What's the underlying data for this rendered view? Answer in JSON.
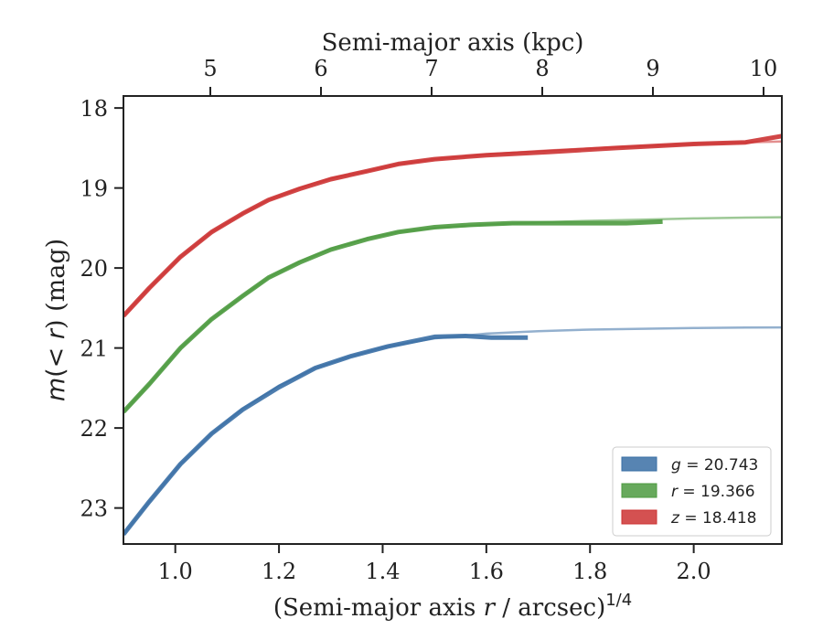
{
  "chart_data": {
    "type": "line",
    "xlabel_main": "(Semi-major axis ",
    "xlabel_var": "r",
    "xlabel_unit": " / arcsec)",
    "xlabel_exp": "1/4",
    "x2label": "Semi-major axis (kpc)",
    "ylabel_pre": "m",
    "ylabel_paren_open": "(",
    "ylabel_lt": "< ",
    "ylabel_var": "r",
    "ylabel_post": ") (mag)",
    "xlim": [
      0.9,
      2.17
    ],
    "ylim": [
      23.45,
      17.85
    ],
    "y_inverted": true,
    "x_ticks": [
      "1.0",
      "1.2",
      "1.4",
      "1.6",
      "1.8",
      "2.0"
    ],
    "y_ticks": [
      "18",
      "19",
      "20",
      "21",
      "22",
      "23"
    ],
    "x2_ticks": [
      "5",
      "6",
      "7",
      "8",
      "9",
      "10"
    ],
    "legend_position": "lower right",
    "series": [
      {
        "name_var": "g",
        "name_val": " = 20.743",
        "color": "#3a6fa5",
        "data": [
          [
            0.9,
            23.33
          ],
          [
            0.95,
            22.92
          ],
          [
            1.01,
            22.45
          ],
          [
            1.07,
            22.07
          ],
          [
            1.13,
            21.77
          ],
          [
            1.2,
            21.49
          ],
          [
            1.27,
            21.25
          ],
          [
            1.34,
            21.1
          ],
          [
            1.41,
            20.98
          ],
          [
            1.5,
            20.86
          ],
          [
            1.56,
            20.85
          ],
          [
            1.61,
            20.87
          ],
          [
            1.68,
            20.87
          ]
        ],
        "model": [
          [
            0.9,
            23.33
          ],
          [
            0.95,
            22.92
          ],
          [
            1.01,
            22.45
          ],
          [
            1.07,
            22.07
          ],
          [
            1.13,
            21.76
          ],
          [
            1.2,
            21.47
          ],
          [
            1.27,
            21.25
          ],
          [
            1.34,
            21.1
          ],
          [
            1.41,
            20.98
          ],
          [
            1.5,
            20.88
          ],
          [
            1.6,
            20.82
          ],
          [
            1.7,
            20.79
          ],
          [
            1.8,
            20.77
          ],
          [
            1.9,
            20.76
          ],
          [
            2.0,
            20.75
          ],
          [
            2.1,
            20.745
          ],
          [
            2.17,
            20.743
          ]
        ]
      },
      {
        "name_var": "r",
        "name_val": " = 19.366",
        "color": "#4c9a3f",
        "data": [
          [
            0.9,
            21.8
          ],
          [
            0.95,
            21.45
          ],
          [
            1.01,
            21.0
          ],
          [
            1.07,
            20.64
          ],
          [
            1.13,
            20.35
          ],
          [
            1.18,
            20.12
          ],
          [
            1.24,
            19.93
          ],
          [
            1.3,
            19.77
          ],
          [
            1.37,
            19.64
          ],
          [
            1.43,
            19.55
          ],
          [
            1.5,
            19.49
          ],
          [
            1.57,
            19.46
          ],
          [
            1.65,
            19.44
          ],
          [
            1.75,
            19.44
          ],
          [
            1.87,
            19.44
          ],
          [
            1.94,
            19.42
          ]
        ],
        "model": [
          [
            0.9,
            21.8
          ],
          [
            0.95,
            21.45
          ],
          [
            1.01,
            21.0
          ],
          [
            1.07,
            20.64
          ],
          [
            1.13,
            20.35
          ],
          [
            1.18,
            20.12
          ],
          [
            1.24,
            19.92
          ],
          [
            1.3,
            19.76
          ],
          [
            1.37,
            19.63
          ],
          [
            1.43,
            19.55
          ],
          [
            1.5,
            19.5
          ],
          [
            1.6,
            19.46
          ],
          [
            1.7,
            19.43
          ],
          [
            1.8,
            19.41
          ],
          [
            1.9,
            19.395
          ],
          [
            2.0,
            19.38
          ],
          [
            2.1,
            19.37
          ],
          [
            2.17,
            19.366
          ]
        ]
      },
      {
        "name_var": "z",
        "name_val": " = 18.418",
        "color": "#cc3333",
        "data": [
          [
            0.9,
            20.6
          ],
          [
            0.95,
            20.25
          ],
          [
            1.01,
            19.86
          ],
          [
            1.07,
            19.55
          ],
          [
            1.13,
            19.32
          ],
          [
            1.18,
            19.15
          ],
          [
            1.24,
            19.01
          ],
          [
            1.3,
            18.89
          ],
          [
            1.37,
            18.79
          ],
          [
            1.43,
            18.7
          ],
          [
            1.5,
            18.64
          ],
          [
            1.6,
            18.59
          ],
          [
            1.72,
            18.55
          ],
          [
            1.85,
            18.5
          ],
          [
            2.0,
            18.45
          ],
          [
            2.1,
            18.43
          ],
          [
            2.17,
            18.35
          ]
        ],
        "model": [
          [
            0.9,
            20.6
          ],
          [
            0.95,
            20.25
          ],
          [
            1.01,
            19.86
          ],
          [
            1.07,
            19.55
          ],
          [
            1.13,
            19.32
          ],
          [
            1.18,
            19.15
          ],
          [
            1.24,
            19.0
          ],
          [
            1.3,
            18.88
          ],
          [
            1.37,
            18.79
          ],
          [
            1.43,
            18.7
          ],
          [
            1.5,
            18.64
          ],
          [
            1.6,
            18.58
          ],
          [
            1.72,
            18.53
          ],
          [
            1.85,
            18.49
          ],
          [
            2.0,
            18.45
          ],
          [
            2.1,
            18.43
          ],
          [
            2.17,
            18.418
          ]
        ]
      }
    ]
  }
}
